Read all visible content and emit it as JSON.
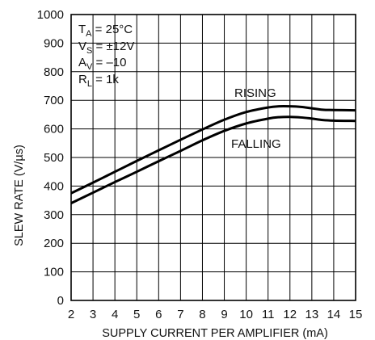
{
  "chart_data": {
    "type": "line",
    "xlabel": "SUPPLY CURRENT PER AMPLIFIER (mA)",
    "ylabel": "SLEW RATE (V/µs)",
    "xlim": [
      2,
      15
    ],
    "ylim": [
      0,
      1000
    ],
    "x_ticks": [
      2,
      3,
      4,
      5,
      6,
      7,
      8,
      9,
      10,
      11,
      12,
      13,
      14,
      15
    ],
    "y_ticks": [
      0,
      100,
      200,
      300,
      400,
      500,
      600,
      700,
      800,
      900,
      1000
    ],
    "grid": true,
    "conditions": {
      "ta": {
        "main": "T",
        "sub": "A",
        "rest": " = 25°C"
      },
      "vs": {
        "main": "V",
        "sub": "S",
        "rest": " = ±12V"
      },
      "av": {
        "main": "A",
        "sub": "V",
        "rest": " = –10"
      },
      "rl": {
        "main": "R",
        "sub": "L",
        "rest": " = 1k"
      }
    },
    "series": [
      {
        "name": "RISING",
        "x": [
          2,
          3,
          4,
          5,
          6,
          7,
          8,
          9,
          10,
          11,
          11.5,
          12,
          12.5,
          13,
          13.5,
          14,
          15
        ],
        "y": [
          375,
          412,
          450,
          488,
          525,
          562,
          598,
          632,
          659,
          675,
          679,
          679,
          677,
          672,
          667,
          666,
          665
        ]
      },
      {
        "name": "FALLING",
        "x": [
          2,
          3,
          4,
          5,
          6,
          7,
          8,
          9,
          10,
          11,
          11.5,
          12,
          12.5,
          13,
          13.5,
          14,
          15
        ],
        "y": [
          340,
          377,
          414,
          450,
          487,
          523,
          560,
          593,
          619,
          636,
          641,
          642,
          640,
          636,
          631,
          629,
          628
        ]
      }
    ]
  }
}
